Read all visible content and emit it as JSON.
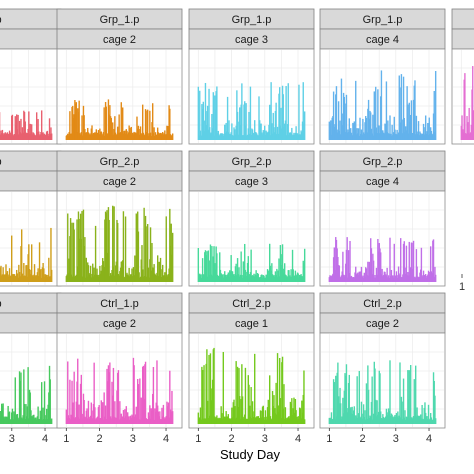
{
  "chart_data": {
    "type": "bar",
    "x_axis_title": "Study Day",
    "x_ticks": [
      1,
      2,
      3,
      4
    ],
    "grid": true,
    "colors": {
      "grp1_cage1": "#e8606f",
      "grp1_cage2": "#e28a16",
      "grp1_cage3": "#5fd0e6",
      "grp1_cage4": "#63b2ec",
      "grp1_right": "#e46fd2",
      "grp2_cage1": "#cf9e1a",
      "grp2_cage2": "#8ab21b",
      "grp2_cage3": "#47d99a",
      "grp2_cage4": "#c06fe8",
      "ctrl1_cage1": "#47c95e",
      "ctrl1_cage2": "#ea5fc6",
      "ctrl2_cage1": "#74c91d",
      "ctrl2_cage2": "#4fd8ae"
    },
    "panels": [
      {
        "id": "grp1_cage1",
        "header1": "p",
        "header2": "l",
        "ticks_shown": [],
        "peak": 0.35
      },
      {
        "id": "grp1_cage2",
        "header1": "Grp_1.p",
        "header2": "cage 2",
        "ticks_shown": [],
        "peak": 0.5
      },
      {
        "id": "grp1_cage3",
        "header1": "Grp_1.p",
        "header2": "cage 3",
        "ticks_shown": [],
        "peak": 0.7
      },
      {
        "id": "grp1_cage4",
        "header1": "Grp_1.p",
        "header2": "cage 4",
        "ticks_shown": [],
        "peak": 0.85
      },
      {
        "id": "grp1_right",
        "header1": "",
        "header2": "",
        "ticks_shown": [],
        "peak": 0.9
      },
      {
        "id": "grp2_cage1",
        "header1": "p",
        "header2": "l",
        "ticks_shown": [],
        "peak": 0.65
      },
      {
        "id": "grp2_cage2",
        "header1": "Grp_2.p",
        "header2": "cage 2",
        "ticks_shown": [],
        "peak": 0.9
      },
      {
        "id": "grp2_cage3",
        "header1": "Grp_2.p",
        "header2": "cage 3",
        "ticks_shown": [],
        "peak": 0.45
      },
      {
        "id": "grp2_cage4",
        "header1": "Grp_2.p",
        "header2": "cage 4",
        "ticks_shown": [],
        "peak": 0.55
      },
      {
        "id": "grp2_right",
        "header1": "",
        "header2": "",
        "ticks_shown": [
          1
        ],
        "peak": 0.0
      },
      {
        "id": "ctrl1_cage1",
        "header1": "p",
        "header2": "l",
        "ticks_shown": [
          3,
          4
        ],
        "peak": 0.7
      },
      {
        "id": "ctrl1_cage2",
        "header1": "Ctrl_1.p",
        "header2": "cage 2",
        "ticks_shown": [
          1,
          2,
          3,
          4
        ],
        "peak": 0.8
      },
      {
        "id": "ctrl2_cage1",
        "header1": "Ctrl_2.p",
        "header2": "cage 1",
        "ticks_shown": [
          1,
          2,
          3,
          4
        ],
        "peak": 0.9
      },
      {
        "id": "ctrl2_cage2",
        "header1": "Ctrl_2.p",
        "header2": "cage 2",
        "ticks_shown": [
          1,
          2,
          3,
          4
        ],
        "peak": 0.75
      }
    ]
  }
}
